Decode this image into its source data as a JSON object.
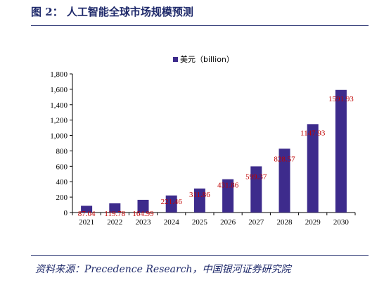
{
  "figure": {
    "title": "图 2：  人工智能全球市场规模预测",
    "source": "资料来源：Precedence Research，中国银河证券研究院"
  },
  "colors": {
    "bar": "#3d2b8c",
    "data_label": "#c00000",
    "text": "#1f2a6b"
  },
  "chart_data": {
    "type": "bar",
    "categories": [
      "2021",
      "2022",
      "2023",
      "2024",
      "2025",
      "2026",
      "2027",
      "2028",
      "2029",
      "2030"
    ],
    "series": [
      {
        "name": "美元（billion）",
        "values": [
          87.04,
          119.78,
          164.99,
          221.46,
          311.86,
          431.86,
          599.37,
          828.57,
          1147.93,
          1591.93
        ],
        "labels": [
          "87.04",
          "119.78",
          "164.99",
          "221.46",
          "311.86",
          "431.86",
          "599.37",
          "828.57",
          "1147.93",
          "1591.93"
        ]
      }
    ],
    "yticks": [
      "0",
      "200",
      "400",
      "600",
      "800",
      "1,000",
      "1,200",
      "1,400",
      "1,600",
      "1,800"
    ],
    "ylim": [
      0,
      1800
    ],
    "legend": "top-center",
    "grid": false
  }
}
